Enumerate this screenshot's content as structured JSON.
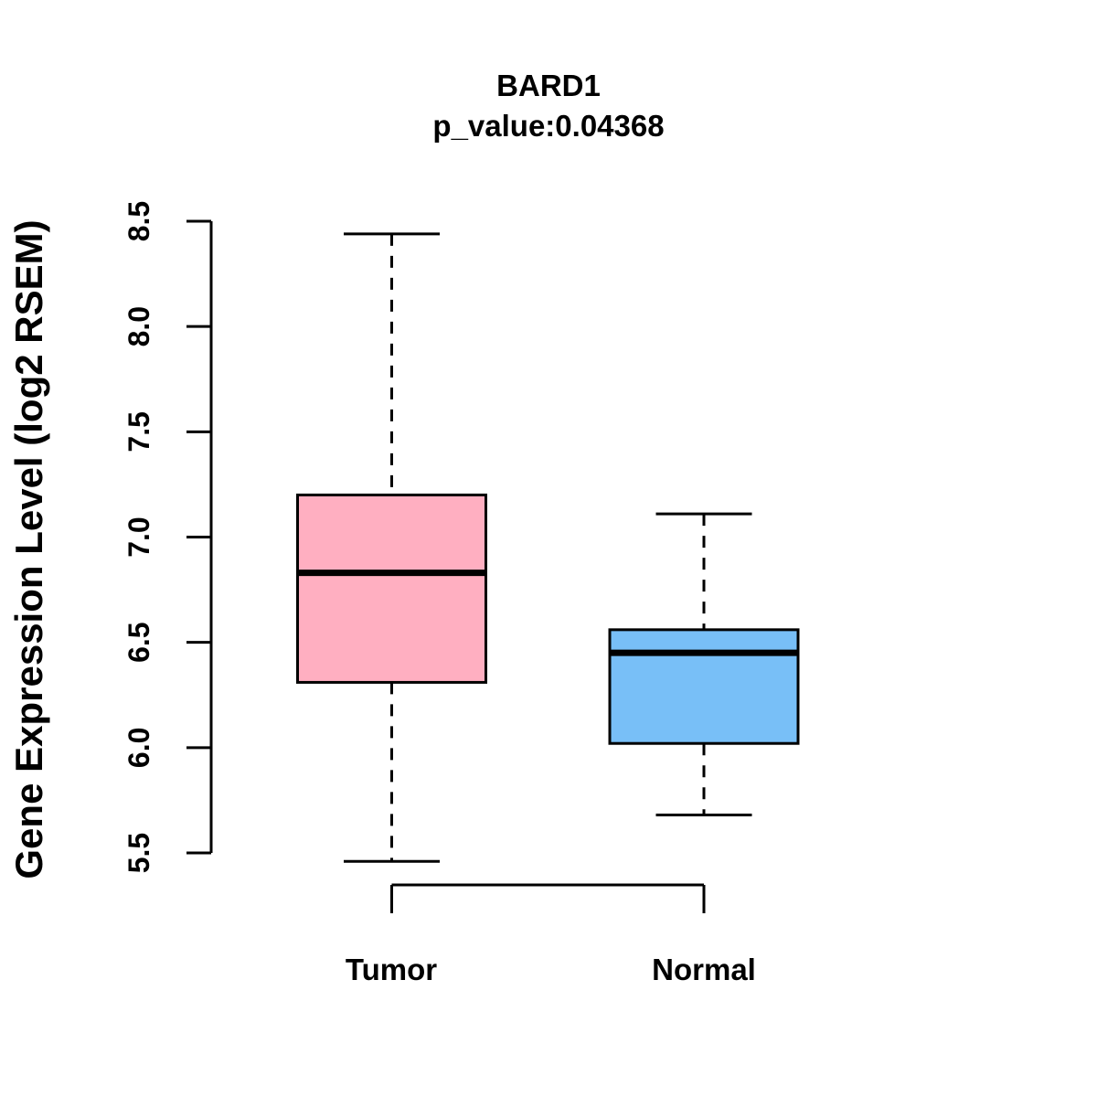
{
  "chart_data": {
    "type": "boxplot",
    "title": "BARD1",
    "subtitle": "p_value:0.04368",
    "ylabel": "Gene Expression Level (log2 RSEM)",
    "xlabel": "",
    "ylim": [
      5.5,
      8.5
    ],
    "yticks": [
      5.5,
      6.0,
      6.5,
      7.0,
      7.5,
      8.0,
      8.5
    ],
    "ytick_labels": [
      "5.5",
      "6.0",
      "6.5",
      "7.0",
      "7.5",
      "8.0",
      "8.5"
    ],
    "categories": [
      "Tumor",
      "Normal"
    ],
    "grid": false,
    "legend": "none",
    "stroke_color": "#000000",
    "background_color": "#FFFFFF",
    "series": [
      {
        "name": "Tumor",
        "whisker_low": 5.46,
        "q1": 6.31,
        "median": 6.83,
        "q3": 7.2,
        "whisker_high": 8.44,
        "box_color": "#FFAFC1"
      },
      {
        "name": "Normal",
        "whisker_low": 5.68,
        "q1": 6.02,
        "median": 6.45,
        "q3": 6.56,
        "whisker_high": 7.11,
        "box_color": "#78BFF7"
      }
    ]
  }
}
